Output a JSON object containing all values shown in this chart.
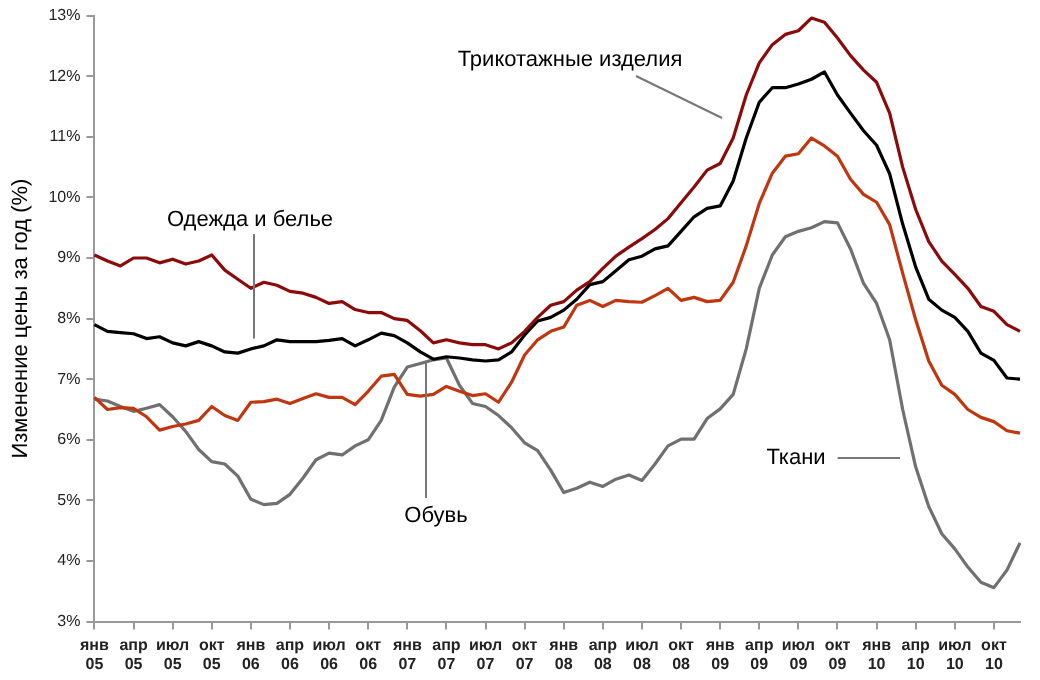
{
  "chart_data": {
    "type": "line",
    "ylabel": "Изменение цены за год (%)",
    "categories": [
      "янв 05",
      null,
      null,
      "апр 05",
      null,
      null,
      "июл 05",
      null,
      null,
      "окт 05",
      null,
      null,
      "янв 06",
      null,
      null,
      "апр 06",
      null,
      null,
      "июл 06",
      null,
      null,
      "окт 06",
      null,
      null,
      "янв 07",
      null,
      null,
      "апр 07",
      null,
      null,
      "июл 07",
      null,
      null,
      "окт 07",
      null,
      null,
      "янв 08",
      null,
      null,
      "апр 08",
      null,
      null,
      "июл 08",
      null,
      null,
      "окт 08",
      null,
      null,
      "янв 09",
      null,
      null,
      "апр 09",
      null,
      null,
      "июл 09",
      null,
      null,
      "окт 09",
      null,
      null,
      "янв 10",
      null,
      null,
      "апр 10",
      null,
      null,
      "июл 10",
      null,
      null,
      "окт 10",
      null,
      null
    ],
    "series": [
      {
        "color": "#8b0a0a",
        "values": [
          9.05,
          8.95,
          8.87,
          9.0,
          9.0,
          8.92,
          8.98,
          8.9,
          8.95,
          9.05,
          8.8,
          8.65,
          8.5,
          8.6,
          8.55,
          8.45,
          8.42,
          8.35,
          8.25,
          8.28,
          8.15,
          8.1,
          8.1,
          8.0,
          7.97,
          7.8,
          7.6,
          7.65,
          7.6,
          7.57,
          7.57,
          7.5,
          7.6,
          7.79,
          8.02,
          8.22,
          8.28,
          8.47,
          8.61,
          8.83,
          9.03,
          9.18,
          9.32,
          9.47,
          9.65,
          9.91,
          10.17,
          10.45,
          10.56,
          10.98,
          11.69,
          12.22,
          12.52,
          12.69,
          12.75,
          12.96,
          12.89,
          12.63,
          12.34,
          12.1,
          11.9,
          11.39,
          10.5,
          9.8,
          9.27,
          8.95,
          8.73,
          8.5,
          8.2,
          8.12,
          7.9,
          7.79
        ]
      },
      {
        "color": "#000000",
        "values": [
          7.9,
          7.79,
          7.77,
          7.75,
          7.67,
          7.7,
          7.6,
          7.55,
          7.62,
          7.55,
          7.45,
          7.43,
          7.5,
          7.55,
          7.65,
          7.62,
          7.62,
          7.62,
          7.64,
          7.67,
          7.55,
          7.65,
          7.76,
          7.72,
          7.6,
          7.45,
          7.33,
          7.37,
          7.35,
          7.32,
          7.3,
          7.32,
          7.45,
          7.73,
          7.96,
          8.02,
          8.14,
          8.32,
          8.56,
          8.61,
          8.79,
          8.97,
          9.03,
          9.15,
          9.2,
          9.44,
          9.68,
          9.82,
          9.86,
          10.27,
          10.98,
          11.57,
          11.81,
          11.81,
          11.87,
          11.95,
          12.07,
          11.69,
          11.39,
          11.1,
          10.86,
          10.39,
          9.56,
          8.85,
          8.32,
          8.14,
          8.02,
          7.79,
          7.43,
          7.31,
          7.02,
          7.0
        ]
      },
      {
        "color": "#c0360f",
        "values": [
          6.7,
          6.5,
          6.53,
          6.52,
          6.38,
          6.16,
          6.22,
          6.26,
          6.32,
          6.55,
          6.4,
          6.32,
          6.62,
          6.63,
          6.67,
          6.6,
          6.68,
          6.76,
          6.7,
          6.7,
          6.58,
          6.8,
          7.05,
          7.08,
          6.75,
          6.72,
          6.75,
          6.88,
          6.8,
          6.73,
          6.76,
          6.62,
          6.95,
          7.4,
          7.65,
          7.79,
          7.86,
          8.22,
          8.3,
          8.2,
          8.3,
          8.28,
          8.27,
          8.38,
          8.5,
          8.3,
          8.35,
          8.28,
          8.3,
          8.6,
          9.2,
          9.9,
          10.4,
          10.68,
          10.72,
          10.98,
          10.85,
          10.68,
          10.3,
          10.05,
          9.92,
          9.55,
          8.75,
          7.98,
          7.3,
          6.9,
          6.75,
          6.5,
          6.37,
          6.3,
          6.15,
          6.11
        ]
      },
      {
        "color": "#707070",
        "values": [
          6.67,
          6.64,
          6.55,
          6.47,
          6.52,
          6.58,
          6.38,
          6.14,
          5.84,
          5.64,
          5.6,
          5.4,
          5.02,
          4.93,
          4.95,
          5.1,
          5.37,
          5.67,
          5.78,
          5.75,
          5.9,
          6.0,
          6.32,
          6.87,
          7.2,
          7.26,
          7.32,
          7.35,
          6.9,
          6.6,
          6.55,
          6.4,
          6.2,
          5.95,
          5.82,
          5.5,
          5.13,
          5.2,
          5.3,
          5.23,
          5.35,
          5.42,
          5.33,
          5.6,
          5.9,
          6.01,
          6.01,
          6.35,
          6.51,
          6.75,
          7.5,
          8.5,
          9.05,
          9.35,
          9.44,
          9.5,
          9.6,
          9.58,
          9.15,
          8.58,
          8.25,
          7.65,
          6.5,
          5.55,
          4.9,
          4.45,
          4.2,
          3.9,
          3.65,
          3.56,
          3.85,
          4.3
        ]
      }
    ],
    "annotations": [
      "Трикотажные изделия",
      {
        "text": "Одежда и белье",
        "y": 7.67
      },
      {
        "text": "Обувь",
        "y": 7.3
      },
      "Ткани"
    ],
    "ylim": [
      3,
      13
    ],
    "yticks": [
      {
        "value": 3,
        "label": "3%"
      },
      {
        "value": 4,
        "label": "4%"
      },
      {
        "value": 5,
        "label": "5%"
      },
      {
        "value": 6,
        "label": "6%"
      },
      {
        "value": 7,
        "label": "7%"
      },
      {
        "value": 8,
        "label": "8%"
      },
      {
        "value": 9,
        "label": "9%"
      },
      {
        "value": 10,
        "label": "10%"
      },
      {
        "value": 11,
        "label": "11%"
      },
      {
        "value": 12,
        "label": "12%"
      },
      {
        "value": 13,
        "label": "13%"
      }
    ],
    "grid": false,
    "legend": false,
    "line_style": "solid"
  }
}
